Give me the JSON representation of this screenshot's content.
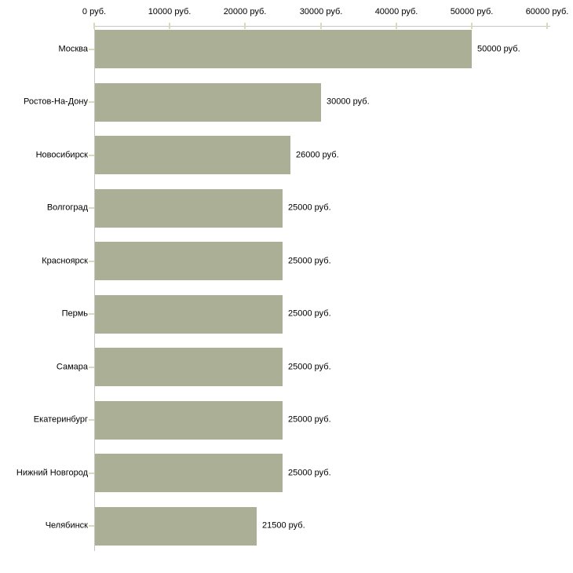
{
  "chart_data": {
    "type": "bar",
    "orientation": "horizontal",
    "categories": [
      "Москва",
      "Ростов-На-Дону",
      "Новосибирск",
      "Волгоград",
      "Красноярск",
      "Пермь",
      "Самара",
      "Екатеринбург",
      "Нижний Новгород",
      "Челябинск"
    ],
    "values": [
      50000,
      30000,
      26000,
      25000,
      25000,
      25000,
      25000,
      25000,
      25000,
      21500
    ],
    "value_labels": [
      "50000 руб.",
      "30000 руб.",
      "26000 руб.",
      "25000 руб.",
      "25000 руб.",
      "25000 руб.",
      "25000 руб.",
      "25000 руб.",
      "25000 руб.",
      "21500 руб."
    ],
    "x_axis": {
      "position": "top",
      "range": [
        0,
        60000
      ],
      "ticks": [
        0,
        10000,
        20000,
        30000,
        40000,
        50000,
        60000
      ],
      "tick_labels": [
        "0 руб.",
        "10000 руб.",
        "20000 руб.",
        "30000 руб.",
        "40000 руб.",
        "50000 руб.",
        "60000 руб."
      ]
    },
    "grid": false,
    "legend": "none",
    "colors": {
      "bar": "#abaf96",
      "axis_line": "#c6c6c3",
      "tick_mark": "#d8dab8",
      "text": "#000000",
      "background": "#ffffff"
    }
  }
}
